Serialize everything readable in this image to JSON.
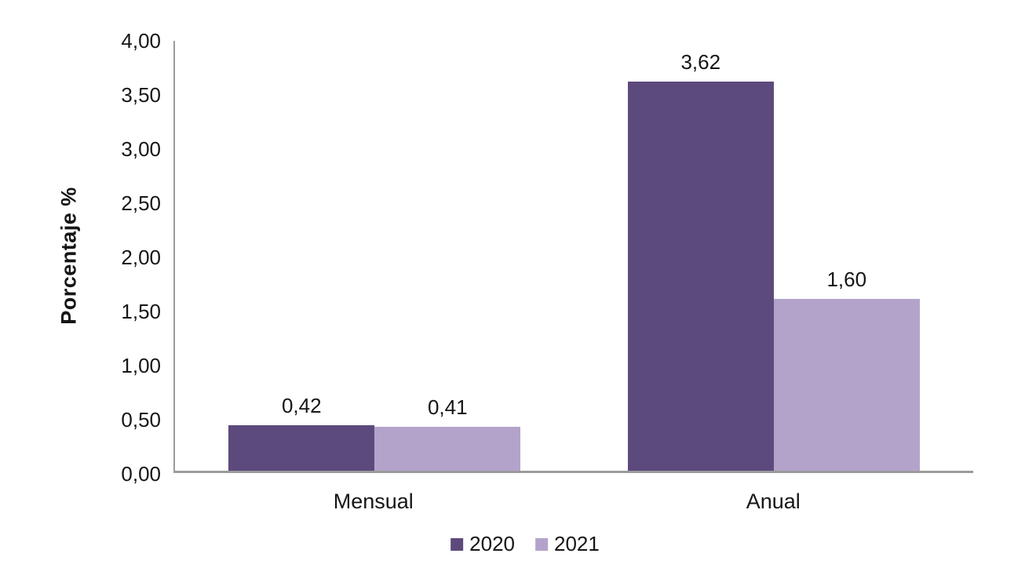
{
  "chart_data": {
    "type": "bar",
    "categories": [
      "Mensual",
      "Anual"
    ],
    "series": [
      {
        "name": "2020",
        "values": [
          0.42,
          3.62
        ],
        "labels": [
          "0,42",
          "3,62"
        ],
        "color": "#5d4a7d"
      },
      {
        "name": "2021",
        "values": [
          0.41,
          1.6
        ],
        "labels": [
          "0,41",
          "1,60"
        ],
        "color": "#b3a3cb"
      }
    ],
    "xlabel": "",
    "ylabel": "Porcentaje %",
    "ylim": [
      0,
      4
    ],
    "ytick_step": 0.5,
    "ytick_labels": [
      "4,00",
      "3,50",
      "3,00",
      "2,50",
      "2,00",
      "1,50",
      "1,00",
      "0,50",
      "0,00"
    ],
    "grid": false,
    "legend_position": "bottom",
    "axis_color": "#9b9b9b",
    "text_color": "#161616"
  }
}
